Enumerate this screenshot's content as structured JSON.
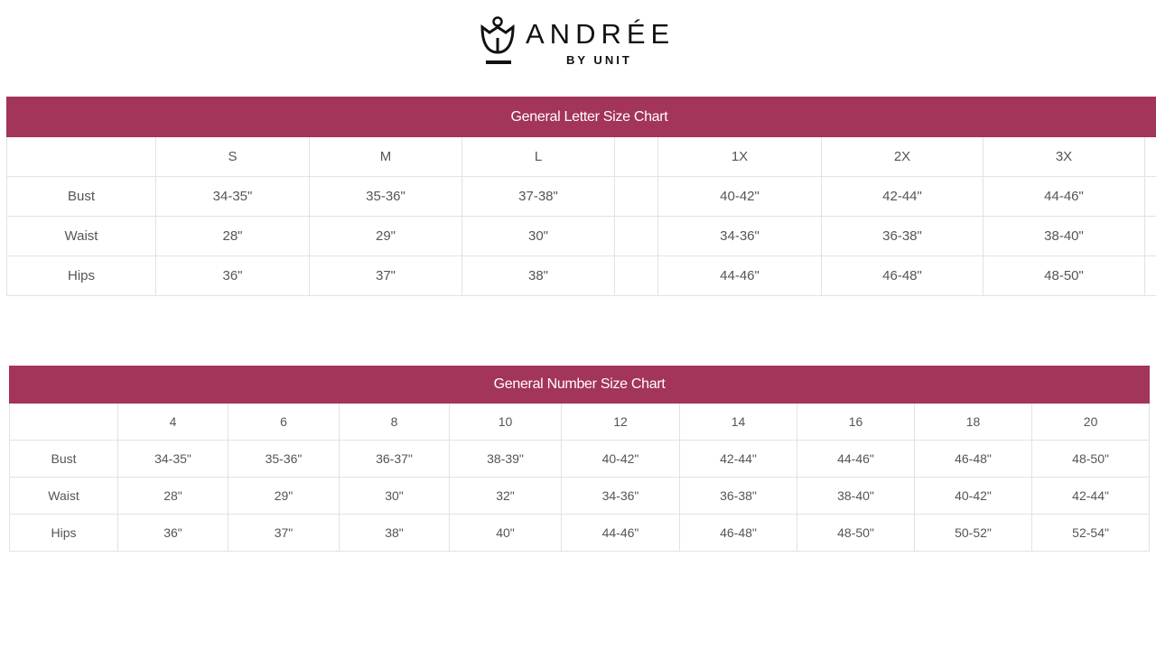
{
  "brand": {
    "name": "ANDRÉE",
    "sub": "BY UNIT"
  },
  "letter_chart": {
    "title": "General Letter Size Chart",
    "sizes": [
      "S",
      "M",
      "L",
      "",
      "1X",
      "2X",
      "3X",
      ""
    ],
    "rows": [
      {
        "label": "Bust",
        "values": [
          "34-35\"",
          "35-36\"",
          "37-38\"",
          "",
          "40-42\"",
          "42-44\"",
          "44-46\"",
          ""
        ]
      },
      {
        "label": "Waist",
        "values": [
          "28\"",
          "29\"",
          "30\"",
          "",
          "34-36\"",
          "36-38\"",
          "38-40\"",
          ""
        ]
      },
      {
        "label": "Hips",
        "values": [
          "36\"",
          "37\"",
          "38\"",
          "",
          "44-46\"",
          "46-48\"",
          "48-50\"",
          ""
        ]
      }
    ]
  },
  "number_chart": {
    "title": "General Number Size Chart",
    "sizes": [
      "4",
      "6",
      "8",
      "10",
      "12",
      "14",
      "16",
      "18",
      "20"
    ],
    "rows": [
      {
        "label": "Bust",
        "values": [
          "34-35\"",
          "35-36\"",
          "36-37\"",
          "38-39\"",
          "40-42\"",
          "42-44\"",
          "44-46\"",
          "46-48\"",
          "48-50\""
        ]
      },
      {
        "label": "Waist",
        "values": [
          "28\"",
          "29\"",
          "30\"",
          "32\"",
          "34-36\"",
          "36-38\"",
          "38-40\"",
          "40-42\"",
          "42-44\""
        ]
      },
      {
        "label": "Hips",
        "values": [
          "36\"",
          "37\"",
          "38\"",
          "40\"",
          "44-46\"",
          "46-48\"",
          "48-50\"",
          "50-52\"",
          "52-54\""
        ]
      }
    ]
  },
  "colors": {
    "header": "#a3345a"
  }
}
